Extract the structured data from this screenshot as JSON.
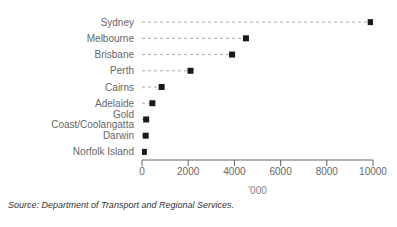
{
  "chart_data": {
    "type": "lollipop",
    "orientation": "horizontal",
    "categories": [
      "Sydney",
      "Melbourne",
      "Brisbane",
      "Perth",
      "Cairns",
      "Adelaide",
      "Gold Coast/Coolangatta",
      "Darwin",
      "Norfolk Island"
    ],
    "values": [
      9900,
      4500,
      3900,
      2100,
      850,
      450,
      180,
      160,
      80
    ],
    "color": "#1a1a1a",
    "marker": "square",
    "line_style": "dashed",
    "xlabel": "'000",
    "xlim": [
      0,
      10000
    ],
    "xticks": [
      0,
      2000,
      4000,
      6000,
      8000,
      10000
    ],
    "grid": false,
    "annotation": "Source: Department of Transport and Regional Services."
  }
}
